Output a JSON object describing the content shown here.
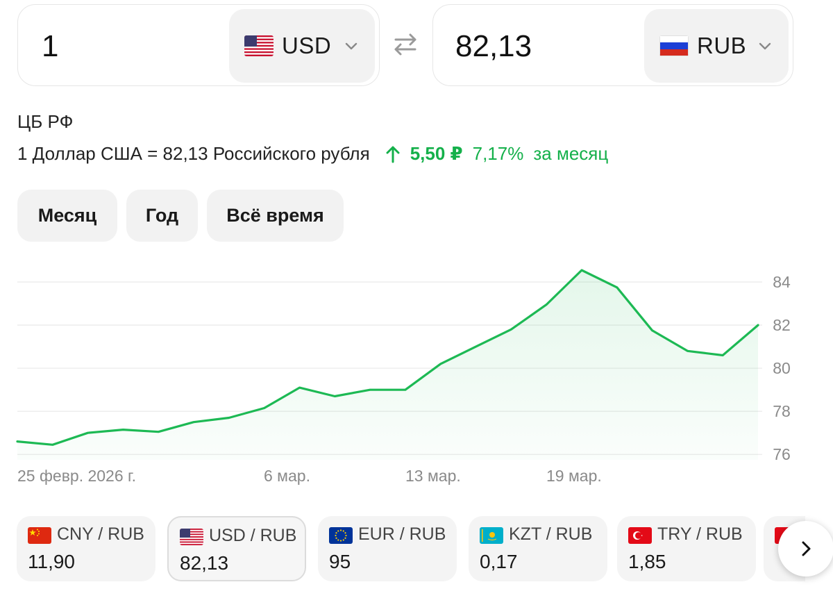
{
  "converter": {
    "from": {
      "amount": "1",
      "currency": "USD",
      "flag_icon": "us-flag-icon"
    },
    "to": {
      "amount": "82,13",
      "currency": "RUB",
      "flag_icon": "ru-flag-icon"
    },
    "swap_icon": "swap-arrows-icon"
  },
  "info": {
    "source": "ЦБ РФ",
    "rate_text": "1 Доллар США = 82,13 Российского рубля",
    "change_abs": "5,50 ₽",
    "change_pct": "7,17%",
    "change_period": "за месяц",
    "change_color": "#14b04a"
  },
  "tabs": [
    {
      "label": "Месяц",
      "active": true
    },
    {
      "label": "Год",
      "active": false
    },
    {
      "label": "Всё время",
      "active": false
    }
  ],
  "chart_data": {
    "type": "area",
    "x_labels": [
      "25 февр. 2026 г.",
      "6 мар.",
      "13 мар.",
      "19 мар."
    ],
    "y_ticks": [
      "84",
      "82",
      "80",
      "78",
      "76"
    ],
    "ylim": [
      75.75,
      85.0
    ],
    "values": [
      76.6,
      76.45,
      77.0,
      77.15,
      77.05,
      77.5,
      77.7,
      78.15,
      79.1,
      78.7,
      79.0,
      79.0,
      80.2,
      81.0,
      81.8,
      82.95,
      84.55,
      83.75,
      81.75,
      80.8,
      80.6,
      82.0
    ],
    "line_color": "#1db954",
    "grid": true
  },
  "pairs": [
    {
      "label": "CNY / RUB",
      "value": "11,90",
      "flag_icon": "cn-flag-icon",
      "active": false
    },
    {
      "label": "USD / RUB",
      "value": "82,13",
      "flag_icon": "us-flag-icon",
      "active": true
    },
    {
      "label": "EUR / RUB",
      "value": "95",
      "flag_icon": "eu-flag-icon",
      "active": false
    },
    {
      "label": "KZT / RUB",
      "value": "0,17",
      "flag_icon": "kz-flag-icon",
      "active": false
    },
    {
      "label": "TRY / RUB",
      "value": "1,85",
      "flag_icon": "tr-flag-icon",
      "active": false
    }
  ],
  "next_icon": "chevron-right-icon"
}
